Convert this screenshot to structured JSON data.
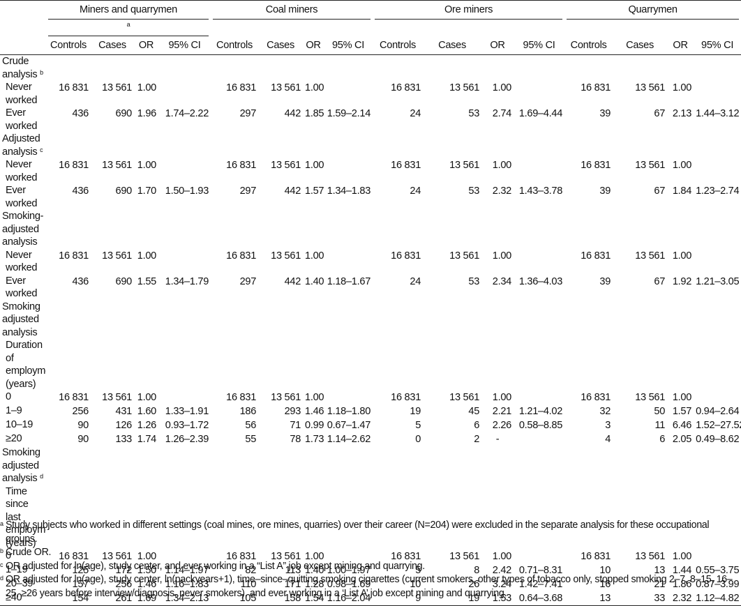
{
  "group_headers": [
    {
      "label": "Miners and quarrymen",
      "sup": "a"
    },
    {
      "label": "Coal miners",
      "sup": ""
    },
    {
      "label": "Ore miners",
      "sup": ""
    },
    {
      "label": "Quarrymen",
      "sup": ""
    }
  ],
  "sub_headers": [
    "Controls",
    "Cases",
    "OR",
    "95% CI"
  ],
  "sections": [
    {
      "title": "Crude analysis",
      "sup": "b",
      "rows": [
        {
          "label": "Never worked",
          "values": [
            "16 831",
            "13 561",
            "1.00",
            "",
            "16 831",
            "13 561",
            "1.00",
            "",
            "16 831",
            "13 561",
            "1.00",
            "",
            "16 831",
            "13 561",
            "1.00",
            ""
          ]
        },
        {
          "label": "Ever worked",
          "values": [
            "436",
            "690",
            "1.96",
            "1.74–2.22",
            "297",
            "442",
            "1.85",
            "1.59–2.14",
            "24",
            "53",
            "2.74",
            "1.69–4.44",
            "39",
            "67",
            "2.13",
            "1.44–3.12"
          ]
        }
      ]
    },
    {
      "title": "Adjusted analysis",
      "sup": "c",
      "rows": [
        {
          "label": "Never worked",
          "values": [
            "16 831",
            "13 561",
            "1.00",
            "",
            "16 831",
            "13 561",
            "1.00",
            "",
            "16 831",
            "13 561",
            "1.00",
            "",
            "16 831",
            "13 561",
            "1.00",
            ""
          ]
        },
        {
          "label": "Ever worked",
          "values": [
            "436",
            "690",
            "1.70",
            "1.50–1.93",
            "297",
            "442",
            "1.57",
            "1.34–1.83",
            "24",
            "53",
            "2.32",
            "1.43–3.78",
            "39",
            "67",
            "1.84",
            "1.23–2.74"
          ]
        }
      ]
    },
    {
      "title": "Smoking-adjusted analysis",
      "sup": "",
      "rows": [
        {
          "label": "Never worked",
          "values": [
            "16 831",
            "13 561",
            "1.00",
            "",
            "16 831",
            "13 561",
            "1.00",
            "",
            "16 831",
            "13 561",
            "1.00",
            "",
            "16 831",
            "13 561",
            "1.00",
            ""
          ]
        },
        {
          "label": "Ever worked",
          "values": [
            "436",
            "690",
            "1.55",
            "1.34–1.79",
            "297",
            "442",
            "1.40",
            "1.18–1.67",
            "24",
            "53",
            "2.34",
            "1.36–4.03",
            "39",
            "67",
            "1.92",
            "1.21–3.05"
          ]
        }
      ]
    },
    {
      "title": "Smoking adjusted analysis",
      "sup": "",
      "subtitle": "Duration of employment (years)",
      "rows": [
        {
          "label": "0",
          "values": [
            "16 831",
            "13 561",
            "1.00",
            "",
            "16 831",
            "13 561",
            "1.00",
            "",
            "16 831",
            "13 561",
            "1.00",
            "",
            "16 831",
            "13 561",
            "1.00",
            ""
          ]
        },
        {
          "label": "1–9",
          "values": [
            "256",
            "431",
            "1.60",
            "1.33–1.91",
            "186",
            "293",
            "1.46",
            "1.18–1.80",
            "19",
            "45",
            "2.21",
            "1.21–4.02",
            "32",
            "50",
            "1.57",
            "0.94–2.64"
          ]
        },
        {
          "label": "10–19",
          "values": [
            "90",
            "126",
            "1.26",
            "0.93–1.72",
            "56",
            "71",
            "0.99",
            "0.67–1.47",
            "5",
            "6",
            "2.26",
            "0.58–8.85",
            "3",
            "11",
            "6.46",
            "1.52–27.52"
          ]
        },
        {
          "label": "≥20",
          "values": [
            "90",
            "133",
            "1.74",
            "1.26–2.39",
            "55",
            "78",
            "1.73",
            "1.14–2.62",
            "0",
            "2",
            "-",
            "",
            "4",
            "6",
            "2.05",
            "0.49–8.62"
          ]
        }
      ]
    },
    {
      "title": "Smoking adjusted analysis",
      "sup": "d",
      "subtitle": "Time since last employment (years)",
      "rows": [
        {
          "label": "0",
          "values": [
            "16 831",
            "13 561",
            "1.00",
            "",
            "16 831",
            "13 561",
            "1.00",
            "",
            "16 831",
            "13 561",
            "1.00",
            "",
            "16 831",
            "13 561",
            "1.00",
            ""
          ]
        },
        {
          "label": "1–19",
          "values": [
            "125",
            "172",
            "1.50",
            "1.14–1.97",
            "82",
            "113",
            "1.40",
            "1.00–1.97",
            "5",
            "8",
            "2.42",
            "0.71–8.31",
            "10",
            "13",
            "1.44",
            "0.55–3.75"
          ]
        },
        {
          "label": "20–39",
          "values": [
            "157",
            "256",
            "1.46",
            "1.16–1.83",
            "110",
            "171",
            "1.28",
            "0.98–1.69",
            "10",
            "26",
            "3.24",
            "1.42–7.41",
            "16",
            "21",
            "1.86",
            "0.87–3.99"
          ]
        },
        {
          "label": "≥40",
          "values": [
            "154",
            "261",
            "1.69",
            "1.34–2.13",
            "105",
            "158",
            "1.54",
            "1.16–2.04",
            "9",
            "19",
            "1.53",
            "0.64–3.68",
            "13",
            "33",
            "2.32",
            "1.12–4.82"
          ]
        }
      ]
    }
  ],
  "footnotes": [
    {
      "mark": "a",
      "text": "Study subjects who worked in different settings (coal mines, ore mines, quarries) over their career (N=204) were excluded in the separate analysis for these occupational groups."
    },
    {
      "mark": "b",
      "text": "Crude OR."
    },
    {
      "mark": "c",
      "text": "OR adjusted for ln(age), study center, and ever working in a “List A” job except mining and quarrying."
    },
    {
      "mark": "d",
      "text": "OR adjusted for ln(age), study center, ln(packyears+1), time–since–quitting smoking cigarettes (current smokers, other types of tobacco only, stopped smoking 2–7, 8–15, 16–25, ≥26 years before interview/diagnosis, never smokers), and ever working in a ‘List A’ job except mining and quarrying."
    }
  ]
}
